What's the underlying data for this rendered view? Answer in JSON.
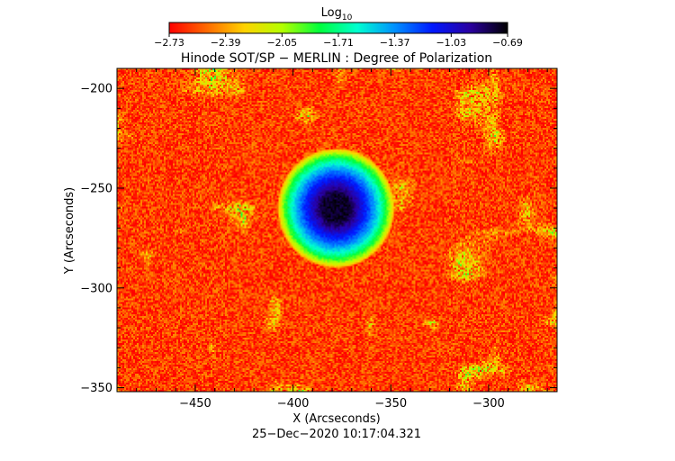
{
  "chart_data": {
    "type": "heatmap",
    "title": "Hinode SOT/SP − MERLIN : Degree of Polarization",
    "xlabel": "X (Arcseconds)",
    "ylabel": "Y (Arcseconds)",
    "timestamp": "25−Dec−2020 10:17:04.321",
    "xlim": [
      -490,
      -265
    ],
    "ylim": [
      -352,
      -190
    ],
    "x_ticks": [
      {
        "value": -450,
        "label": "−450"
      },
      {
        "value": -400,
        "label": "−400"
      },
      {
        "value": -350,
        "label": "−350"
      },
      {
        "value": -300,
        "label": "−300"
      }
    ],
    "y_ticks": [
      {
        "value": -200,
        "label": "−200"
      },
      {
        "value": -250,
        "label": "−250"
      },
      {
        "value": -300,
        "label": "−300"
      },
      {
        "value": -350,
        "label": "−350"
      }
    ],
    "colorbar": {
      "label_main": "Log",
      "label_sub": "10",
      "range": [
        -2.73,
        -0.69
      ],
      "ticks": [
        "−2.73",
        "−2.39",
        "−2.05",
        "−1.71",
        "−1.37",
        "−1.03",
        "−0.69"
      ],
      "colormap": [
        "#ff0000",
        "#ff6a00",
        "#ffd200",
        "#b4ff00",
        "#00ff3c",
        "#00ffd0",
        "#0090ff",
        "#0018ff",
        "#2a00a0",
        "#000000"
      ]
    },
    "features": [
      {
        "kind": "sunspot",
        "center_x": -378,
        "center_y": -260,
        "umbra_radius": 17,
        "penumbra_radius": 30,
        "value": -0.75
      }
    ],
    "background_value": -2.6
  }
}
